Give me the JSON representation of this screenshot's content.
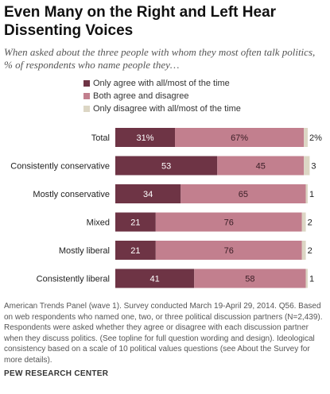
{
  "header": {
    "title": "Even Many on the Right and Left Hear Dissenting Voices",
    "subtitle": "When asked about the three people with whom they most often talk politics, % of respondents who name people they…"
  },
  "footer": {
    "note": "American Trends Panel (wave 1). Survey conducted March 19-April 29, 2014. Q56. Based on web respondents who named one, two, or three political discussion partners (N=2,439). Respondents were asked whether they agree or disagree with each discussion partner when they discuss politics.  (See topline for full question wording and design). Ideological consistency based on a scale of 10 political values questions (see About the Survey for more details).",
    "source": "PEW RESEARCH CENTER"
  },
  "chart_data": {
    "type": "bar",
    "orientation": "horizontal",
    "stacked": true,
    "categories": [
      "Total",
      "Consistently conservative",
      "Mostly conservative",
      "Mixed",
      "Mostly liberal",
      "Consistently liberal"
    ],
    "series": [
      {
        "name": "Only agree with all/most of the time",
        "color": "#6e3445",
        "values": [
          31,
          53,
          34,
          21,
          21,
          41
        ],
        "labels": [
          "31%",
          "53",
          "34",
          "21",
          "21",
          "41"
        ]
      },
      {
        "name": "Both agree and disagree",
        "color": "#c27f8e",
        "values": [
          67,
          45,
          65,
          76,
          76,
          58
        ],
        "labels": [
          "67%",
          "45",
          "65",
          "76",
          "76",
          "58"
        ]
      },
      {
        "name": "Only disagree with all/most of the time",
        "color": "#dcd6c4",
        "values": [
          2,
          3,
          1,
          2,
          2,
          1
        ],
        "labels": [
          "2%",
          "3",
          "1",
          "2",
          "2",
          "1"
        ]
      }
    ],
    "xlim": [
      0,
      100
    ],
    "grid": false,
    "legend_position": "top"
  }
}
